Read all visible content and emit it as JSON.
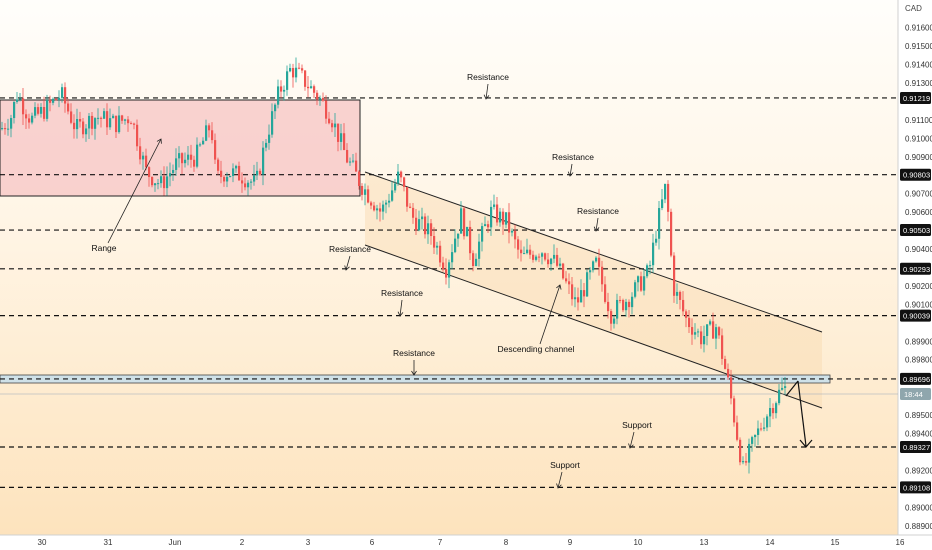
{
  "chart_data": {
    "type": "candlestick",
    "currency": "CAD",
    "ylim": [
      0.8885,
      0.9175
    ],
    "y_ticks": [
      {
        "value": 0.916,
        "label": "0.91600"
      },
      {
        "value": 0.915,
        "label": "0.91500"
      },
      {
        "value": 0.914,
        "label": "0.91400"
      },
      {
        "value": 0.913,
        "label": "0.91300"
      },
      {
        "value": 0.911,
        "label": "0.91100"
      },
      {
        "value": 0.91,
        "label": "0.91000"
      },
      {
        "value": 0.909,
        "label": "0.90900"
      },
      {
        "value": 0.907,
        "label": "0.90700"
      },
      {
        "value": 0.906,
        "label": "0.90600"
      },
      {
        "value": 0.904,
        "label": "0.90400"
      },
      {
        "value": 0.902,
        "label": "0.90200"
      },
      {
        "value": 0.901,
        "label": "0.90100"
      },
      {
        "value": 0.899,
        "label": "0.89900"
      },
      {
        "value": 0.898,
        "label": "0.89800"
      },
      {
        "value": 0.895,
        "label": "0.89500"
      },
      {
        "value": 0.894,
        "label": "0.89400"
      },
      {
        "value": 0.892,
        "label": "0.89200"
      },
      {
        "value": 0.89,
        "label": "0.89000"
      },
      {
        "value": 0.889,
        "label": "0.88900"
      }
    ],
    "x_ticks": [
      "30",
      "31",
      "Jun",
      "2",
      "3",
      "6",
      "7",
      "8",
      "9",
      "10",
      "13",
      "14",
      "15",
      "16"
    ],
    "levels": [
      {
        "value": 0.91219,
        "label": "0.91219"
      },
      {
        "value": 0.90803,
        "label": "0.90803"
      },
      {
        "value": 0.90503,
        "label": "0.90503"
      },
      {
        "value": 0.90293,
        "label": "0.90293"
      },
      {
        "value": 0.90039,
        "label": "0.90039"
      },
      {
        "value": 0.89696,
        "label": "0.89696"
      },
      {
        "value": 0.89327,
        "label": "0.89327"
      },
      {
        "value": 0.89108,
        "label": "0.89108"
      }
    ],
    "current_price_label": "18:44",
    "annotations": [
      {
        "text": "Resistance"
      },
      {
        "text": "Resistance"
      },
      {
        "text": "Resistance"
      },
      {
        "text": "Resistance"
      },
      {
        "text": "Resistance"
      },
      {
        "text": "Resistance"
      },
      {
        "text": "Range"
      },
      {
        "text": "Descending channel"
      },
      {
        "text": "Support"
      },
      {
        "text": "Support"
      }
    ],
    "colors": {
      "up": "#26a69a",
      "down": "#ef5350",
      "range_box": "#f7c4c4",
      "channel_fill": "#f9d9b0",
      "level_line": "#111111",
      "tag_bg": "#111111"
    }
  }
}
